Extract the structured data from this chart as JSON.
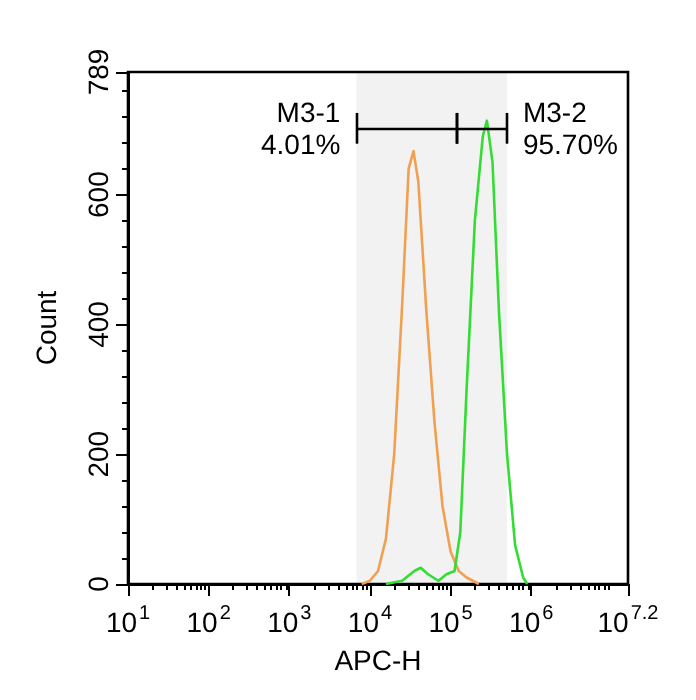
{
  "chart_data": {
    "type": "line",
    "xlabel": "APC-H",
    "ylabel": "Count",
    "log": "x",
    "xlim": [
      10,
      15848932
    ],
    "xticks": [
      {
        "value": 10,
        "label": "10$^{1}$"
      },
      {
        "value": 100,
        "label": "10$^{2}$"
      },
      {
        "value": 1000,
        "label": "10$^{3}$"
      },
      {
        "value": 10000,
        "label": "10$^{4}$"
      },
      {
        "value": 100000,
        "label": "10$^{5}$"
      },
      {
        "value": 1000000,
        "label": "10$^{6}$"
      },
      {
        "value": 15848932,
        "label": "10$^{7.2}$"
      }
    ],
    "ylim": [
      0,
      789
    ],
    "yticks": [
      0,
      200,
      400,
      600,
      789
    ],
    "grid": false,
    "marker": "none",
    "line_style": "solid",
    "bands": [
      {
        "axis": "x",
        "from": 6800,
        "to": 118000,
        "label": "M3-1\n4.01%",
        "color": "#000000"
      },
      {
        "axis": "x",
        "from": 118000,
        "to": 500000,
        "label": "M3-2\n95.70%",
        "color": "#000000"
      }
    ],
    "series": [
      {
        "color": "#f0a050",
        "x": [
          7900,
          10000,
          12600,
          15800,
          20000,
          25100,
          30200,
          34700,
          39800,
          50100,
          63100,
          79400,
          100000,
          126000,
          158000,
          224000
        ],
        "values": [
          0,
          5,
          20,
          70,
          200,
          430,
          640,
          667,
          620,
          420,
          250,
          120,
          50,
          20,
          10,
          0
        ]
      },
      {
        "color": "#33dd33",
        "x": [
          15800,
          25100,
          35500,
          42700,
          52500,
          70800,
          89100,
          112000,
          132000,
          158000,
          200000,
          251000,
          282000,
          331000,
          398000,
          501000,
          631000,
          794000,
          891000
        ],
        "values": [
          0,
          5,
          20,
          25,
          15,
          5,
          15,
          20,
          80,
          300,
          560,
          690,
          714,
          650,
          420,
          200,
          60,
          10,
          0
        ]
      }
    ]
  }
}
